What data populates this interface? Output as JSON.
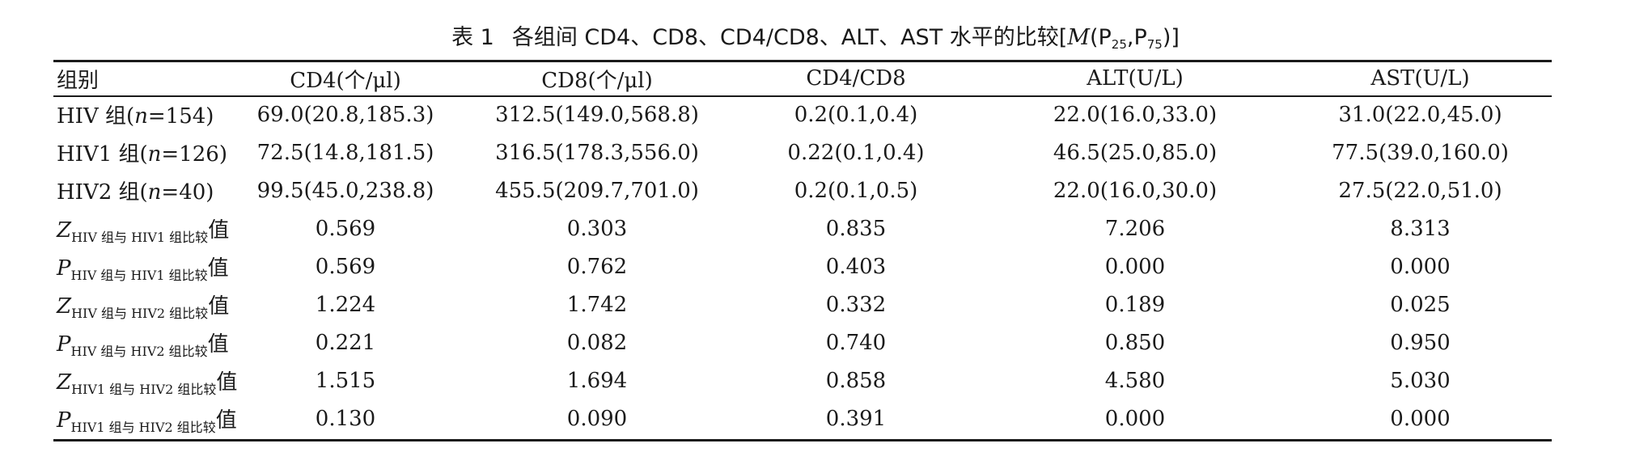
{
  "caption": {
    "label": "表 1",
    "text": "各组间 CD4、CD8、CD4/CD8、ALT、AST 水平的比较[",
    "stat_symbol": "M",
    "open": "(P",
    "p25": "25",
    "sep": ",P",
    "p75": "75",
    "close": ")]"
  },
  "table": {
    "headers": [
      "组别",
      "CD4(个/μl)",
      "CD8(个/μl)",
      "CD4/CD8",
      "ALT(U/L)",
      "AST(U/L)"
    ],
    "rows": [
      {
        "label": {
          "pre": "HIV 组(",
          "n_symbol": "n",
          "post": "=154)"
        },
        "values": [
          "69.0(20.8,185.3)",
          "312.5(149.0,568.8)",
          "0.2(0.1,0.4)",
          "22.0(16.0,33.0)",
          "31.0(22.0,45.0)"
        ]
      },
      {
        "label": {
          "pre": "HIV1 组(",
          "n_symbol": "n",
          "post": "=126)"
        },
        "values": [
          "72.5(14.8,181.5)",
          "316.5(178.3,556.0)",
          "0.22(0.1,0.4)",
          "46.5(25.0,85.0)",
          "77.5(39.0,160.0)"
        ]
      },
      {
        "label": {
          "pre": "HIV2 组(",
          "n_symbol": "n",
          "post": "=40)"
        },
        "values": [
          "99.5(45.0,238.8)",
          "455.5(209.7,701.0)",
          "0.2(0.1,0.5)",
          "22.0(16.0,30.0)",
          "27.5(22.0,51.0)"
        ]
      },
      {
        "label": {
          "symbol": "Z",
          "sub": "HIV 组与 HIV1 组比较",
          "suffix": "值"
        },
        "values": [
          "0.569",
          "0.303",
          "0.835",
          "7.206",
          "8.313"
        ]
      },
      {
        "label": {
          "symbol": "P",
          "sub": "HIV 组与 HIV1 组比较",
          "suffix": "值"
        },
        "values": [
          "0.569",
          "0.762",
          "0.403",
          "0.000",
          "0.000"
        ]
      },
      {
        "label": {
          "symbol": "Z",
          "sub": "HIV 组与 HIV2 组比较",
          "suffix": "值"
        },
        "values": [
          "1.224",
          "1.742",
          "0.332",
          "0.189",
          "0.025"
        ]
      },
      {
        "label": {
          "symbol": "P",
          "sub": "HIV 组与 HIV2 组比较",
          "suffix": "值"
        },
        "values": [
          "0.221",
          "0.082",
          "0.740",
          "0.850",
          "0.950"
        ]
      },
      {
        "label": {
          "symbol": "Z",
          "sub": "HIV1 组与 HIV2 组比较",
          "suffix": "值"
        },
        "values": [
          "1.515",
          "1.694",
          "0.858",
          "4.580",
          "5.030"
        ]
      },
      {
        "label": {
          "symbol": "P",
          "sub": "HIV1 组与 HIV2 组比较",
          "suffix": "值"
        },
        "values": [
          "0.130",
          "0.090",
          "0.391",
          "0.000",
          "0.000"
        ]
      }
    ]
  }
}
